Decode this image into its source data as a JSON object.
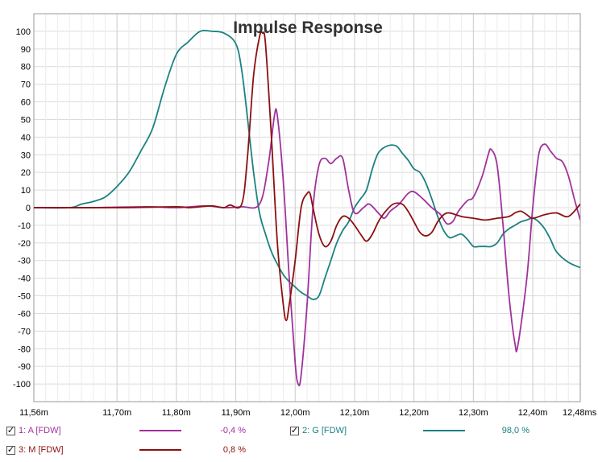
{
  "chart_data": {
    "type": "line",
    "title": "Impulse Response",
    "xlabel": "",
    "ylabel": "",
    "x_unit": "ms",
    "xlim": [
      11.56,
      12.48
    ],
    "ylim": [
      -110,
      110
    ],
    "x_ticks": [
      {
        "value": 11.56,
        "label": "11,56m"
      },
      {
        "value": 11.7,
        "label": "11,70m"
      },
      {
        "value": 11.8,
        "label": "11,80m"
      },
      {
        "value": 11.9,
        "label": "11,90m"
      },
      {
        "value": 12.0,
        "label": "12,00m"
      },
      {
        "value": 12.1,
        "label": "12,10m"
      },
      {
        "value": 12.2,
        "label": "12,20m"
      },
      {
        "value": 12.3,
        "label": "12,30m"
      },
      {
        "value": 12.4,
        "label": "12,40m"
      },
      {
        "value": 12.48,
        "label": "12,48ms"
      }
    ],
    "y_ticks": [
      100,
      90,
      80,
      70,
      60,
      50,
      40,
      30,
      20,
      10,
      0,
      -10,
      -20,
      -30,
      -40,
      -50,
      -60,
      -70,
      -80,
      -90,
      -100
    ],
    "grid": true,
    "legend_position": "bottom",
    "series": [
      {
        "name": "1: A [FDW]",
        "color": "#a0329c",
        "legend_value": "-0,4 %",
        "checked": true,
        "points": [
          [
            11.56,
            0
          ],
          [
            11.65,
            0
          ],
          [
            11.75,
            0.5
          ],
          [
            11.8,
            0
          ],
          [
            11.85,
            1
          ],
          [
            11.88,
            0
          ],
          [
            11.91,
            0.5
          ],
          [
            11.94,
            2
          ],
          [
            11.955,
            25
          ],
          [
            11.965,
            52
          ],
          [
            11.97,
            52
          ],
          [
            11.98,
            15
          ],
          [
            11.99,
            -40
          ],
          [
            12.0,
            -88
          ],
          [
            12.005,
            -100
          ],
          [
            12.01,
            -95
          ],
          [
            12.02,
            -55
          ],
          [
            12.03,
            0
          ],
          [
            12.04,
            24
          ],
          [
            12.05,
            28
          ],
          [
            12.06,
            25
          ],
          [
            12.07,
            28
          ],
          [
            12.08,
            28
          ],
          [
            12.09,
            10
          ],
          [
            12.1,
            -3
          ],
          [
            12.115,
            0
          ],
          [
            12.125,
            2
          ],
          [
            12.14,
            -3
          ],
          [
            12.15,
            -6
          ],
          [
            12.16,
            -2
          ],
          [
            12.175,
            2
          ],
          [
            12.19,
            8
          ],
          [
            12.2,
            9
          ],
          [
            12.215,
            5
          ],
          [
            12.23,
            0
          ],
          [
            12.245,
            -4
          ],
          [
            12.255,
            -9
          ],
          [
            12.265,
            -8
          ],
          [
            12.275,
            -2
          ],
          [
            12.29,
            4
          ],
          [
            12.3,
            6
          ],
          [
            12.315,
            18
          ],
          [
            12.325,
            30
          ],
          [
            12.33,
            33
          ],
          [
            12.34,
            24
          ],
          [
            12.35,
            -10
          ],
          [
            12.36,
            -50
          ],
          [
            12.37,
            -77
          ],
          [
            12.375,
            -78
          ],
          [
            12.39,
            -40
          ],
          [
            12.4,
            0
          ],
          [
            12.41,
            30
          ],
          [
            12.42,
            36
          ],
          [
            12.43,
            32
          ],
          [
            12.44,
            28
          ],
          [
            12.45,
            26
          ],
          [
            12.46,
            18
          ],
          [
            12.47,
            5
          ],
          [
            12.48,
            -7
          ]
        ]
      },
      {
        "name": "2: G [FDW]",
        "color": "#1c8181",
        "legend_value": "98,0 %",
        "checked": true,
        "points": [
          [
            11.56,
            0
          ],
          [
            11.62,
            0
          ],
          [
            11.64,
            2
          ],
          [
            11.66,
            3.5
          ],
          [
            11.68,
            6
          ],
          [
            11.7,
            12
          ],
          [
            11.72,
            20
          ],
          [
            11.74,
            32
          ],
          [
            11.76,
            45
          ],
          [
            11.78,
            68
          ],
          [
            11.8,
            87
          ],
          [
            11.82,
            94
          ],
          [
            11.84,
            100
          ],
          [
            11.86,
            100
          ],
          [
            11.88,
            99
          ],
          [
            11.9,
            93
          ],
          [
            11.91,
            78
          ],
          [
            11.92,
            50
          ],
          [
            11.93,
            20
          ],
          [
            11.94,
            -3
          ],
          [
            11.95,
            -15
          ],
          [
            11.96,
            -25
          ],
          [
            11.97,
            -32
          ],
          [
            11.98,
            -38
          ],
          [
            11.99,
            -42
          ],
          [
            12.0,
            -45
          ],
          [
            12.01,
            -48
          ],
          [
            12.02,
            -50
          ],
          [
            12.03,
            -52
          ],
          [
            12.04,
            -50
          ],
          [
            12.05,
            -40
          ],
          [
            12.06,
            -30
          ],
          [
            12.07,
            -20
          ],
          [
            12.08,
            -13
          ],
          [
            12.09,
            -8
          ],
          [
            12.1,
            0
          ],
          [
            12.11,
            5
          ],
          [
            12.12,
            10
          ],
          [
            12.13,
            22
          ],
          [
            12.14,
            31
          ],
          [
            12.155,
            35
          ],
          [
            12.17,
            35
          ],
          [
            12.18,
            31
          ],
          [
            12.19,
            27
          ],
          [
            12.2,
            22
          ],
          [
            12.21,
            20
          ],
          [
            12.22,
            14
          ],
          [
            12.23,
            5
          ],
          [
            12.24,
            -5
          ],
          [
            12.25,
            -13
          ],
          [
            12.26,
            -17
          ],
          [
            12.27,
            -16
          ],
          [
            12.28,
            -15
          ],
          [
            12.29,
            -18
          ],
          [
            12.3,
            -22
          ],
          [
            12.31,
            -22
          ],
          [
            12.32,
            -22
          ],
          [
            12.33,
            -22
          ],
          [
            12.34,
            -20
          ],
          [
            12.35,
            -15
          ],
          [
            12.36,
            -12
          ],
          [
            12.37,
            -10
          ],
          [
            12.38,
            -8
          ],
          [
            12.39,
            -7
          ],
          [
            12.4,
            -6
          ],
          [
            12.41,
            -8
          ],
          [
            12.42,
            -12
          ],
          [
            12.43,
            -18
          ],
          [
            12.44,
            -25
          ],
          [
            12.46,
            -31
          ],
          [
            12.48,
            -34
          ]
        ]
      },
      {
        "name": "3: M [FDW]",
        "color": "#8b1010",
        "legend_value": "0,8 %",
        "checked": true,
        "points": [
          [
            11.56,
            0
          ],
          [
            11.7,
            0
          ],
          [
            11.8,
            0.5
          ],
          [
            11.82,
            0
          ],
          [
            11.84,
            0.5
          ],
          [
            11.86,
            1
          ],
          [
            11.88,
            0
          ],
          [
            11.89,
            1.5
          ],
          [
            11.91,
            2
          ],
          [
            11.92,
            30
          ],
          [
            11.93,
            75
          ],
          [
            11.94,
            97
          ],
          [
            11.945,
            99
          ],
          [
            11.95,
            93
          ],
          [
            11.96,
            40
          ],
          [
            11.97,
            -20
          ],
          [
            11.98,
            -55
          ],
          [
            11.985,
            -64
          ],
          [
            11.99,
            -55
          ],
          [
            12.0,
            -30
          ],
          [
            12.01,
            0
          ],
          [
            12.02,
            8
          ],
          [
            12.025,
            8
          ],
          [
            12.03,
            0
          ],
          [
            12.04,
            -15
          ],
          [
            12.05,
            -22
          ],
          [
            12.06,
            -19
          ],
          [
            12.07,
            -10
          ],
          [
            12.08,
            -5
          ],
          [
            12.09,
            -6
          ],
          [
            12.1,
            -10
          ],
          [
            12.11,
            -15
          ],
          [
            12.12,
            -19
          ],
          [
            12.13,
            -15
          ],
          [
            12.14,
            -8
          ],
          [
            12.15,
            -3
          ],
          [
            12.165,
            2
          ],
          [
            12.18,
            2
          ],
          [
            12.19,
            -2
          ],
          [
            12.2,
            -8
          ],
          [
            12.21,
            -14
          ],
          [
            12.22,
            -16
          ],
          [
            12.23,
            -14
          ],
          [
            12.24,
            -8
          ],
          [
            12.25,
            -4
          ],
          [
            12.26,
            -3
          ],
          [
            12.28,
            -5
          ],
          [
            12.3,
            -6
          ],
          [
            12.32,
            -7
          ],
          [
            12.34,
            -6
          ],
          [
            12.36,
            -5
          ],
          [
            12.37,
            -3
          ],
          [
            12.38,
            -2
          ],
          [
            12.39,
            -4
          ],
          [
            12.4,
            -6
          ],
          [
            12.42,
            -4
          ],
          [
            12.44,
            -3
          ],
          [
            12.46,
            -5
          ],
          [
            12.48,
            2
          ]
        ]
      }
    ]
  }
}
